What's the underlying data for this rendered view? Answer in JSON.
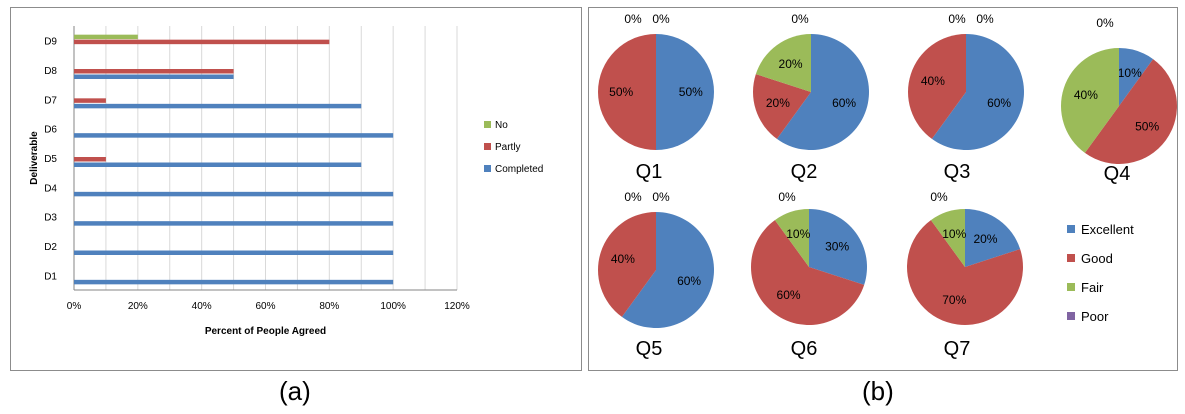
{
  "captions": {
    "a": "(a)",
    "b": "(b)"
  },
  "chart_data": [
    {
      "type": "bar",
      "orientation": "horizontal",
      "categories": [
        "D1",
        "D2",
        "D3",
        "D4",
        "D5",
        "D6",
        "D7",
        "D8",
        "D9"
      ],
      "series": [
        {
          "name": "Completed",
          "color": "#4f81bd",
          "values": [
            100,
            100,
            100,
            100,
            90,
            100,
            90,
            50,
            0
          ]
        },
        {
          "name": "Partly",
          "color": "#c0504d",
          "values": [
            0,
            0,
            0,
            0,
            10,
            0,
            10,
            50,
            80
          ]
        },
        {
          "name": "No",
          "color": "#9bbb59",
          "values": [
            0,
            0,
            0,
            0,
            0,
            0,
            0,
            0,
            20
          ]
        }
      ],
      "xlabel": "Percent of People Agreed",
      "ylabel": "Deliverable",
      "xlim": [
        0,
        120
      ],
      "xticks": [
        "0%",
        "20%",
        "40%",
        "60%",
        "80%",
        "100%",
        "120%"
      ],
      "grid": "vertical",
      "legend": "right"
    },
    {
      "type": "pie",
      "legend": {
        "position": "right",
        "entries": [
          {
            "name": "Excellent",
            "color": "#4f81bd"
          },
          {
            "name": "Good",
            "color": "#c0504d"
          },
          {
            "name": "Fair",
            "color": "#9bbb59"
          },
          {
            "name": "Poor",
            "color": "#8064a2"
          }
        ]
      },
      "pies": [
        {
          "title": "Q1",
          "values": {
            "Excellent": 50,
            "Good": 50,
            "Fair": 0,
            "Poor": 0
          }
        },
        {
          "title": "Q2",
          "values": {
            "Excellent": 60,
            "Good": 20,
            "Fair": 20,
            "Poor": 0
          }
        },
        {
          "title": "Q3",
          "values": {
            "Excellent": 60,
            "Good": 40,
            "Fair": 0,
            "Poor": 0
          }
        },
        {
          "title": "Q4",
          "values": {
            "Excellent": 10,
            "Good": 50,
            "Fair": 40,
            "Poor": 0
          }
        },
        {
          "title": "Q5",
          "values": {
            "Excellent": 60,
            "Good": 40,
            "Fair": 0,
            "Poor": 0
          }
        },
        {
          "title": "Q6",
          "values": {
            "Excellent": 30,
            "Good": 60,
            "Fair": 10,
            "Poor": 0
          }
        },
        {
          "title": "Q7",
          "values": {
            "Excellent": 20,
            "Good": 70,
            "Fair": 10,
            "Poor": 0
          }
        }
      ]
    }
  ]
}
